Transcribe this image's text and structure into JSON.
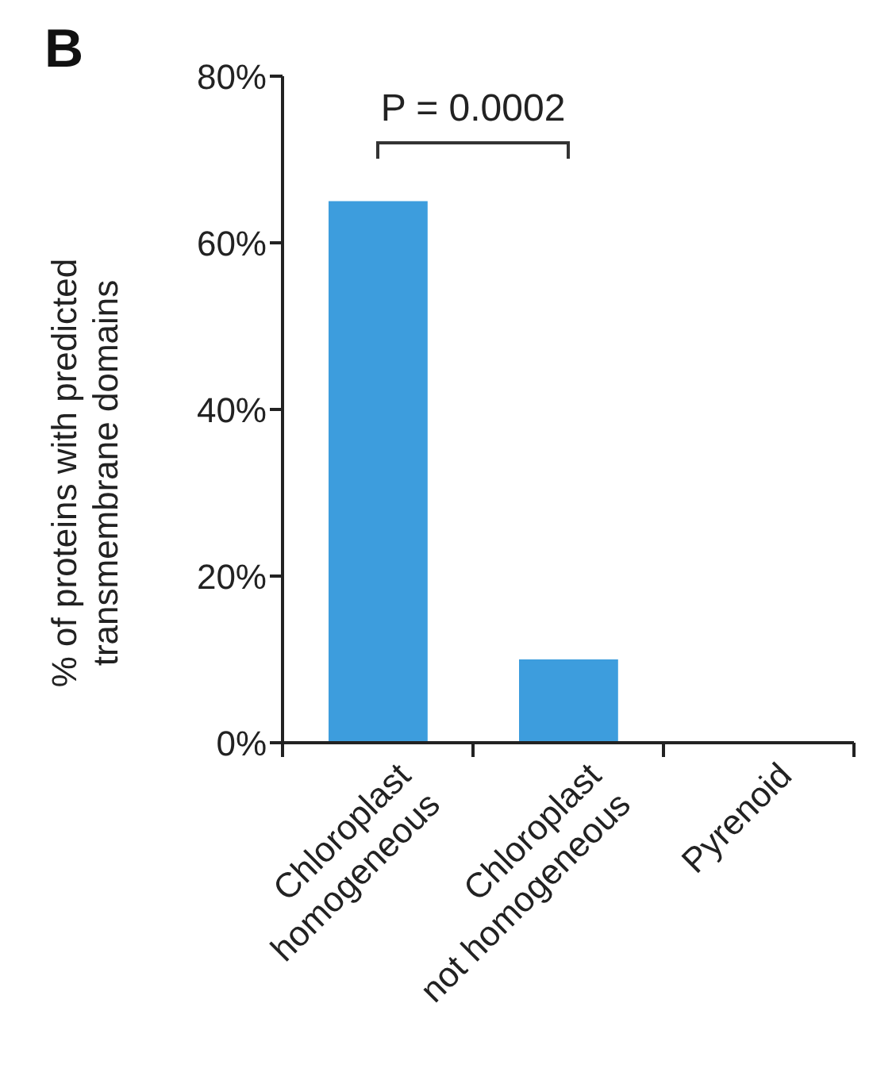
{
  "chart_data": {
    "type": "bar",
    "title": "B",
    "ylabel": "% of proteins with predicted transmembrane domains",
    "categories": [
      "Chloroplast homogeneous",
      "Chloroplast not homogeneous",
      "Pyrenoid"
    ],
    "values": [
      65,
      10,
      0
    ],
    "color": "#3d9ddd",
    "ylim": [
      0,
      80
    ],
    "yticks": [
      {
        "value": 0,
        "label": "0%"
      },
      {
        "value": 20,
        "label": "20%"
      },
      {
        "value": 40,
        "label": "40%"
      },
      {
        "value": 60,
        "label": "60%"
      },
      {
        "value": 80,
        "label": "80%"
      }
    ],
    "annotations": [
      "P = 0.0002"
    ],
    "grid": false,
    "legend": false
  }
}
